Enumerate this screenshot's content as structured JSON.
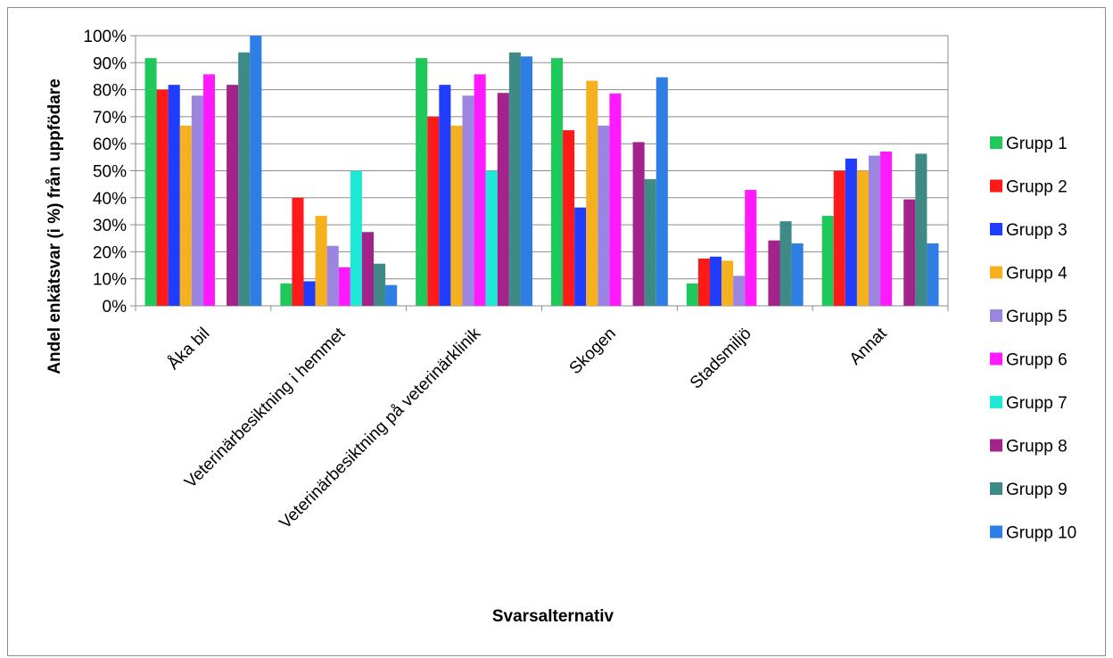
{
  "chart_data": {
    "type": "bar",
    "title": "",
    "xlabel": "Svarsalternativ",
    "ylabel": "Andel enkätsvar (i %) från uppfödare",
    "ylim": [
      0,
      100
    ],
    "yticks": [
      "0%",
      "10%",
      "20%",
      "30%",
      "40%",
      "50%",
      "60%",
      "70%",
      "80%",
      "90%",
      "100%"
    ],
    "grid": true,
    "legend_position": "right",
    "categories": [
      "Åka bil",
      "Veterinärbesiktning i hemmet",
      "Veterinärbesiktning på veterinärklinik",
      "Skogen",
      "Stadsmiljö",
      "Annat"
    ],
    "series": [
      {
        "name": "Grupp 1",
        "color": "#1fc85a",
        "values": [
          91.7,
          8.3,
          91.7,
          91.7,
          8.3,
          33.3
        ]
      },
      {
        "name": "Grupp 2",
        "color": "#ff1a1a",
        "values": [
          80,
          40,
          70,
          65,
          17.5,
          50
        ]
      },
      {
        "name": "Grupp 3",
        "color": "#1f3cff",
        "values": [
          81.8,
          9.1,
          81.8,
          36.4,
          18.2,
          54.5
        ]
      },
      {
        "name": "Grupp 4",
        "color": "#f5b01e",
        "values": [
          66.7,
          33.3,
          66.7,
          83.3,
          16.7,
          50
        ]
      },
      {
        "name": "Grupp 5",
        "color": "#9b85e0",
        "values": [
          77.8,
          22.2,
          77.8,
          66.7,
          11.1,
          55.6
        ]
      },
      {
        "name": "Grupp 6",
        "color": "#ff1aff",
        "values": [
          85.7,
          14.3,
          85.7,
          78.6,
          42.9,
          57.1
        ]
      },
      {
        "name": "Grupp 7",
        "color": "#1ee8d6",
        "values": [
          0,
          50,
          50,
          0,
          0,
          0
        ]
      },
      {
        "name": "Grupp 8",
        "color": "#a3238a",
        "values": [
          81.8,
          27.3,
          78.8,
          60.6,
          24.2,
          39.4
        ]
      },
      {
        "name": "Grupp 9",
        "color": "#3d8a87",
        "values": [
          93.8,
          15.6,
          93.8,
          46.9,
          31.3,
          56.3
        ]
      },
      {
        "name": "Grupp 10",
        "color": "#2e7ee6",
        "values": [
          100,
          7.7,
          92.3,
          84.6,
          23.1,
          23.1
        ]
      }
    ]
  }
}
